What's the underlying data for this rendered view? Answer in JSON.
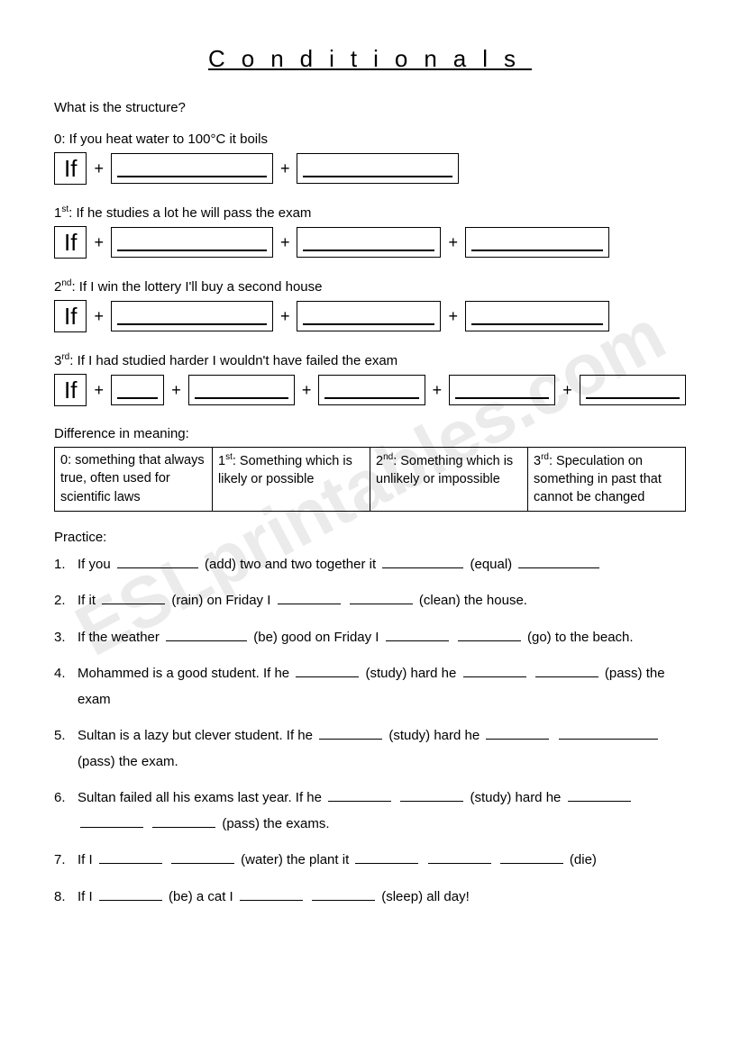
{
  "title": "Conditionals",
  "watermark": "ESLprintables.com",
  "question": "What is the structure?",
  "structures": {
    "zero": {
      "label": "0:  If you heat water to 100°C it boils",
      "if": "If",
      "box_widths": [
        "xlarge",
        "xlarge"
      ]
    },
    "first": {
      "label_prefix": "1",
      "label_sup": "st",
      "label_rest": ":  If he studies a lot he will pass the exam",
      "if": "If",
      "box_widths": [
        "xlarge",
        "large",
        "large"
      ]
    },
    "second": {
      "label_prefix": "2",
      "label_sup": "nd",
      "label_rest": ":  If I win the lottery I'll buy a second house",
      "if": "If",
      "box_widths": [
        "xlarge",
        "large",
        "large"
      ]
    },
    "third": {
      "label_prefix": "3",
      "label_sup": "rd",
      "label_rest": ":  If I had studied harder I wouldn't have failed the exam",
      "if": "If",
      "box_widths": [
        "small",
        "med",
        "med",
        "med",
        "med"
      ]
    }
  },
  "difference_label": "Difference in meaning:",
  "meanings": {
    "c0": {
      "prefix": "0:",
      "text": "  something that always true, often used for scientific laws"
    },
    "c1": {
      "prefix": "1",
      "sup": "st",
      "text": ":  Something which is likely or possible"
    },
    "c2": {
      "prefix": "2",
      "sup": "nd",
      "text": ":  Something which is unlikely or impossible"
    },
    "c3": {
      "prefix": "3",
      "sup": "rd",
      "text": ":  Speculation on something in past that cannot be changed"
    }
  },
  "practice_label": "Practice:",
  "practice": {
    "p1": {
      "num": "1.",
      "a": "If you ",
      "b": " (add) two and two together it ",
      "c": " (equal) "
    },
    "p2": {
      "num": "2.",
      "a": "If it ",
      "b": " (rain) on Friday I ",
      "c": " (clean) the house."
    },
    "p3": {
      "num": "3.",
      "a": "If the weather ",
      "b": " (be) good on Friday I ",
      "c": " (go) to the beach."
    },
    "p4": {
      "num": "4.",
      "a": "Mohammed is a good student.  If he ",
      "b": " (study) hard he ",
      "c": " (pass) the exam"
    },
    "p5": {
      "num": "5.",
      "a": "Sultan is a lazy but clever student.  If he ",
      "b": " (study) hard he ",
      "c": " (pass) the exam."
    },
    "p6": {
      "num": "6.",
      "a": "Sultan failed all his exams last year.  If he ",
      "b": " (study) hard he ",
      "c": " (pass) the exams."
    },
    "p7": {
      "num": "7.",
      "a": "If I ",
      "b": " (water) the plant it ",
      "c": " (die)"
    },
    "p8": {
      "num": "8.",
      "a": "If I ",
      "b": " (be) a cat I ",
      "c": " (sleep) all day!"
    }
  },
  "colors": {
    "text": "#000000",
    "background": "#ffffff",
    "watermark": "rgba(0,0,0,0.08)"
  }
}
